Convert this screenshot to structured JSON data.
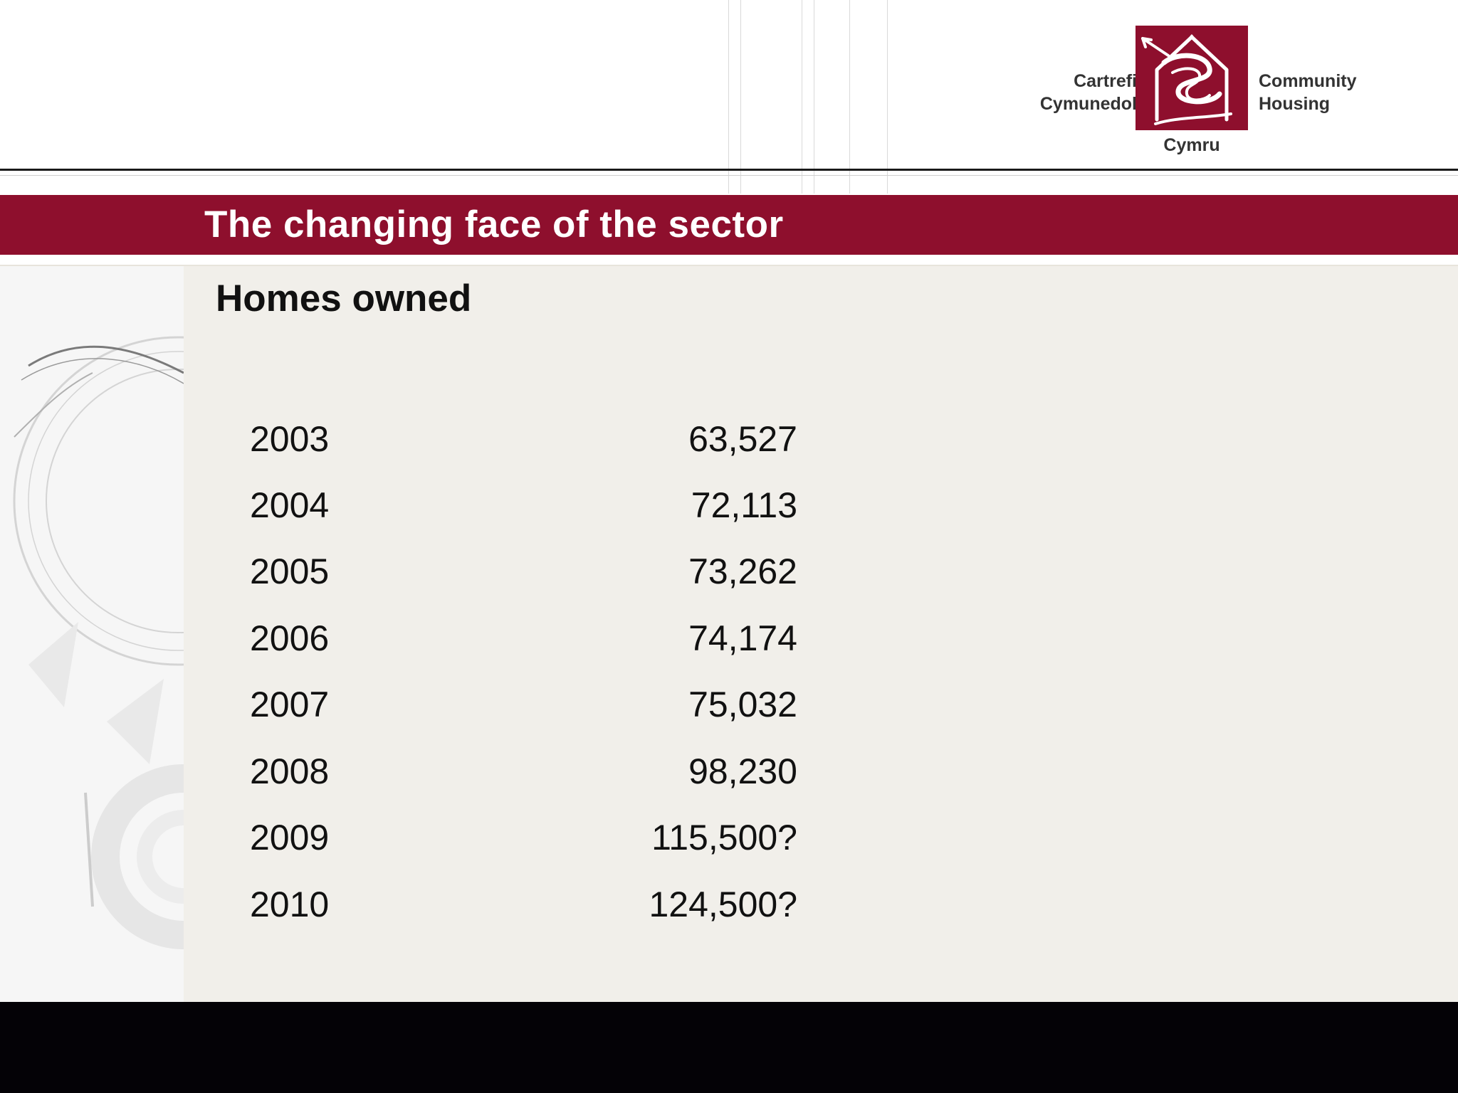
{
  "logo": {
    "left_text": [
      "Cartrefi",
      "Cymunedol"
    ],
    "right_text": [
      "Community",
      "Housing"
    ],
    "bottom_text": "Cymru",
    "icon": "dragon-house-icon",
    "brand_color": "#8e0f2d"
  },
  "title": "The changing face of the sector",
  "subtitle": "Homes owned",
  "table": {
    "rows": [
      {
        "year": "2003",
        "value": "63,527"
      },
      {
        "year": "2004",
        "value": "72,113"
      },
      {
        "year": "2005",
        "value": "73,262"
      },
      {
        "year": "2006",
        "value": "74,174"
      },
      {
        "year": "2007",
        "value": "75,032"
      },
      {
        "year": "2008",
        "value": "98,230"
      },
      {
        "year": "2009",
        "value": "115,500?"
      },
      {
        "year": "2010",
        "value": "124,500?"
      }
    ]
  },
  "colors": {
    "accent": "#8e0f2d",
    "content_background": "#f1efea",
    "footer": "#040206"
  }
}
